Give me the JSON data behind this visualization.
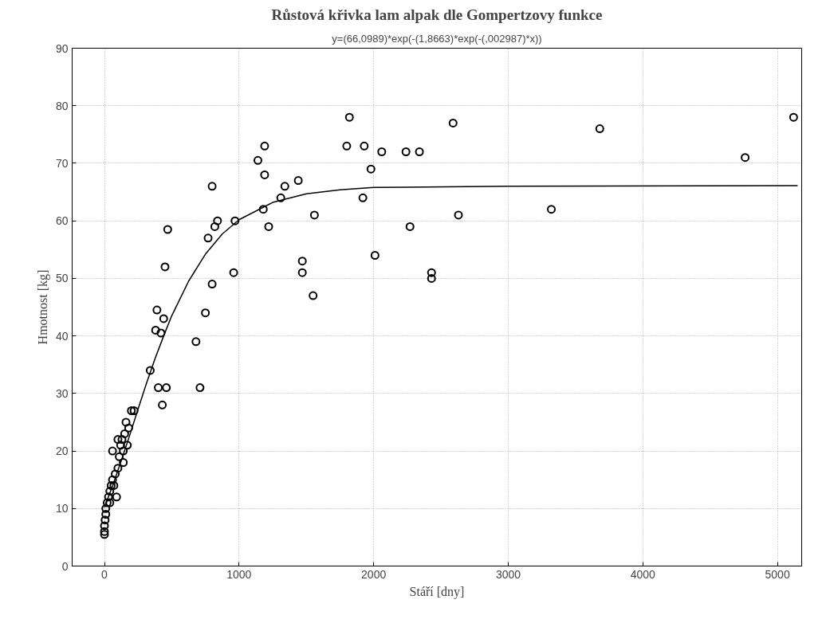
{
  "chart_data": {
    "type": "scatter",
    "title": "Růstová křivka lam alpak dle Gompertzovy funkce",
    "subtitle": "y=(66,0989)*exp(-(1,8663)*exp(-(,002987)*x))",
    "xlabel": "Stáří [dny]",
    "ylabel": "Hmotnost [kg]",
    "xlim": [
      -240,
      5180
    ],
    "ylim": [
      0,
      90
    ],
    "xticks": [
      0,
      1000,
      2000,
      3000,
      4000,
      5000
    ],
    "yticks": [
      0,
      10,
      20,
      30,
      40,
      50,
      60,
      70,
      80,
      90
    ],
    "grid": true,
    "series": [
      {
        "marker": "circle",
        "color": "#000000",
        "x": [
          0,
          0,
          0,
          5,
          10,
          10,
          20,
          30,
          40,
          50,
          60,
          60,
          80,
          90,
          100,
          110,
          120,
          130,
          140,
          150,
          160,
          170,
          180,
          200,
          220,
          140,
          100,
          70,
          40,
          340,
          380,
          390,
          400,
          420,
          430,
          440,
          450,
          460,
          470,
          680,
          710,
          750,
          770,
          800,
          800,
          820,
          840,
          960,
          970,
          1140,
          1180,
          1190,
          1190,
          1220,
          1310,
          1340,
          1440,
          1470,
          1470,
          1550,
          1560,
          1800,
          1820,
          1920,
          1930,
          1980,
          2010,
          2060,
          2240,
          2270,
          2340,
          2430,
          2430,
          2590,
          2630,
          3320,
          3680,
          4760,
          5120
        ],
        "values": [
          5.5,
          6,
          7,
          8,
          9,
          10,
          11,
          12,
          13,
          14,
          20,
          15,
          16,
          12,
          17,
          19,
          21,
          22,
          20,
          23,
          25,
          21,
          24,
          27,
          27,
          18,
          22,
          14,
          11,
          34,
          41,
          44.5,
          31,
          40.5,
          28,
          43,
          52,
          31,
          58.5,
          39,
          31,
          44,
          57,
          66,
          49,
          59,
          60,
          51,
          60,
          70.5,
          62,
          73,
          68,
          59,
          64,
          66,
          67,
          53,
          51,
          47,
          61,
          73,
          78,
          64,
          73,
          69,
          54,
          72,
          72,
          59,
          72,
          51,
          50,
          77,
          61,
          62,
          76,
          71,
          78
        ]
      },
      {
        "type": "line",
        "marker": "none",
        "color": "#000000",
        "x": [
          0,
          60,
          125,
          190,
          250,
          310,
          375,
          440,
          500,
          625,
          750,
          875,
          1000,
          1250,
          1500,
          1750,
          2000,
          3000,
          5150
        ],
        "values": [
          10.2,
          13.9,
          18.3,
          22.9,
          27.3,
          31.6,
          36.0,
          40.0,
          43.5,
          49.5,
          54.2,
          57.7,
          60.2,
          63.2,
          64.7,
          65.4,
          65.8,
          66.0,
          66.1
        ]
      }
    ]
  }
}
